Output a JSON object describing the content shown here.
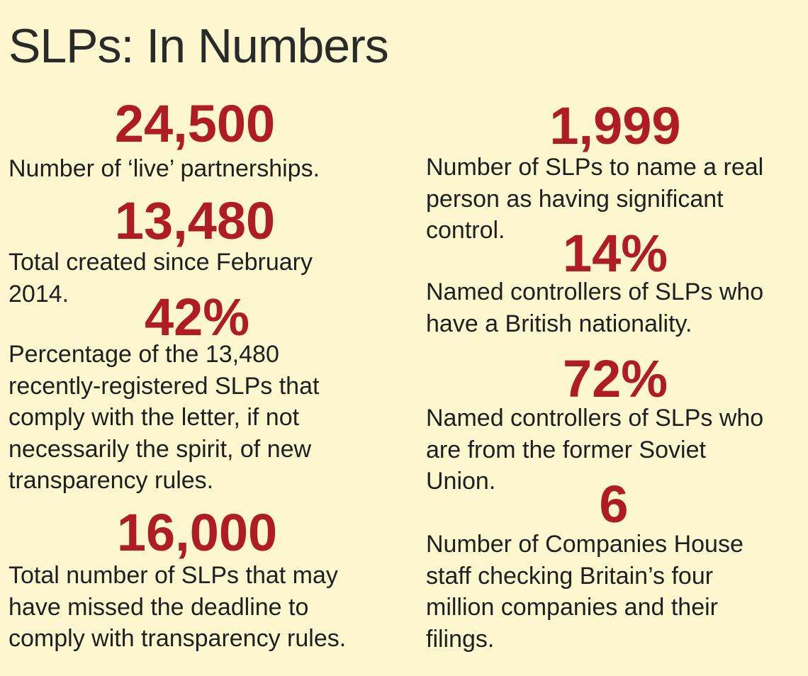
{
  "title": "SLPs: In Numbers",
  "left": [
    {
      "stat": "24,500",
      "lines": [
        "Number of ‘live’ partnerships."
      ]
    },
    {
      "stat": "13,480",
      "lines": [
        "Total created since February",
        "2014."
      ]
    },
    {
      "stat": "42%",
      "lines": [
        "Percentage of the 13,480",
        "recently-registered SLPs that",
        "comply with the letter, if not",
        "necessarily the spirit, of new",
        "transparency rules."
      ]
    },
    {
      "stat": "16,000",
      "lines": [
        "Total number of SLPs that may",
        "have missed the deadline to",
        "comply with transparency rules."
      ]
    }
  ],
  "right": [
    {
      "stat": "1,999",
      "lines": [
        "Number of SLPs to name a real",
        "person as having significant",
        "control."
      ]
    },
    {
      "stat": "14%",
      "lines": [
        "Named controllers of SLPs who",
        "have a British nationality."
      ]
    },
    {
      "stat": "72%",
      "lines": [
        "Named controllers of SLPs who",
        "are from the former Soviet",
        "Union."
      ]
    },
    {
      "stat": "6",
      "lines": [
        "Number of Companies House",
        "staff checking Britain’s four",
        "million companies and their",
        "filings."
      ]
    }
  ]
}
